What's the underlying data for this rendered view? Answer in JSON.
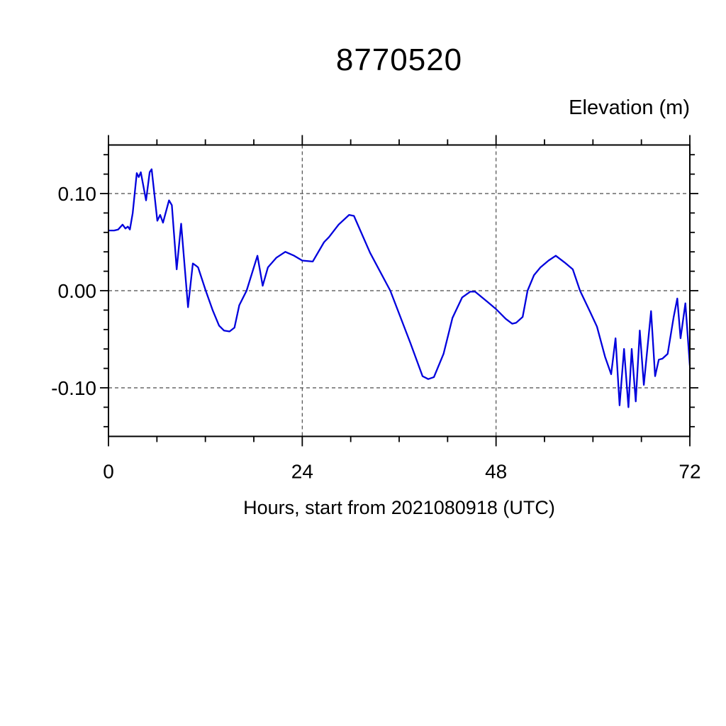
{
  "chart_data": {
    "type": "line",
    "title": "8770520",
    "ylabel": "Elevation (m)",
    "xlabel": "Hours, start from 2021080918 (UTC)",
    "xlim": [
      0,
      72
    ],
    "ylim": [
      -0.15,
      0.15
    ],
    "x_major_ticks": [
      0,
      24,
      48,
      72
    ],
    "x_tick_labels": [
      "0",
      "24",
      "48",
      "72"
    ],
    "x_minor_ticks": [
      6,
      12,
      18,
      30,
      36,
      42,
      54,
      60,
      66
    ],
    "y_major_ticks": [
      0.1,
      0.0,
      -0.1
    ],
    "y_tick_labels": [
      "0.10",
      "0.00",
      "-0.10"
    ],
    "y_minor_ticks": [
      -0.14,
      -0.12,
      -0.08,
      -0.06,
      -0.04,
      -0.02,
      0.02,
      0.04,
      0.06,
      0.08,
      0.12,
      0.14
    ],
    "grid": "dashed-at-major-ticks",
    "legend": "none",
    "line_color": "#0000dd",
    "series": [
      {
        "name": "elevation",
        "points": [
          [
            0.0,
            0.062
          ],
          [
            0.7,
            0.062
          ],
          [
            1.2,
            0.063
          ],
          [
            1.75,
            0.068
          ],
          [
            2.1,
            0.064
          ],
          [
            2.4,
            0.066
          ],
          [
            2.65,
            0.063
          ],
          [
            3.0,
            0.08
          ],
          [
            3.5,
            0.121
          ],
          [
            3.75,
            0.117
          ],
          [
            4.0,
            0.122
          ],
          [
            4.65,
            0.093
          ],
          [
            5.1,
            0.122
          ],
          [
            5.35,
            0.125
          ],
          [
            6.05,
            0.072
          ],
          [
            6.4,
            0.078
          ],
          [
            6.75,
            0.07
          ],
          [
            7.5,
            0.093
          ],
          [
            7.85,
            0.088
          ],
          [
            8.45,
            0.022
          ],
          [
            9.0,
            0.069
          ],
          [
            9.85,
            -0.017
          ],
          [
            10.45,
            0.028
          ],
          [
            10.8,
            0.026
          ],
          [
            11.1,
            0.024
          ],
          [
            12.05,
            0.0
          ],
          [
            12.9,
            -0.02
          ],
          [
            13.7,
            -0.036
          ],
          [
            14.3,
            -0.041
          ],
          [
            15.0,
            -0.042
          ],
          [
            15.6,
            -0.038
          ],
          [
            16.2,
            -0.015
          ],
          [
            17.1,
            0.0
          ],
          [
            18.45,
            0.036
          ],
          [
            19.1,
            0.005
          ],
          [
            19.75,
            0.024
          ],
          [
            20.8,
            0.034
          ],
          [
            21.9,
            0.04
          ],
          [
            23.0,
            0.036
          ],
          [
            24.0,
            0.031
          ],
          [
            25.3,
            0.03
          ],
          [
            26.7,
            0.05
          ],
          [
            27.3,
            0.055
          ],
          [
            28.5,
            0.068
          ],
          [
            29.8,
            0.078
          ],
          [
            30.4,
            0.077
          ],
          [
            32.4,
            0.039
          ],
          [
            34.9,
            0.0
          ],
          [
            37.4,
            -0.054
          ],
          [
            38.9,
            -0.088
          ],
          [
            39.6,
            -0.091
          ],
          [
            40.3,
            -0.089
          ],
          [
            41.5,
            -0.065
          ],
          [
            42.6,
            -0.028
          ],
          [
            43.8,
            -0.007
          ],
          [
            44.8,
            -0.001
          ],
          [
            45.4,
            -0.001
          ],
          [
            47.0,
            -0.012
          ],
          [
            48.0,
            -0.019
          ],
          [
            49.2,
            -0.029
          ],
          [
            50.0,
            -0.034
          ],
          [
            50.5,
            -0.033
          ],
          [
            51.3,
            -0.027
          ],
          [
            51.9,
            0.0
          ],
          [
            52.7,
            0.016
          ],
          [
            53.5,
            0.024
          ],
          [
            54.5,
            0.031
          ],
          [
            55.4,
            0.036
          ],
          [
            56.5,
            0.029
          ],
          [
            57.5,
            0.022
          ],
          [
            58.4,
            0.0
          ],
          [
            59.6,
            -0.021
          ],
          [
            60.5,
            -0.037
          ],
          [
            61.5,
            -0.068
          ],
          [
            62.25,
            -0.086
          ],
          [
            62.8,
            -0.049
          ],
          [
            63.3,
            -0.118
          ],
          [
            63.85,
            -0.06
          ],
          [
            64.4,
            -0.12
          ],
          [
            64.8,
            -0.06
          ],
          [
            65.3,
            -0.114
          ],
          [
            65.8,
            -0.041
          ],
          [
            66.3,
            -0.097
          ],
          [
            67.2,
            -0.021
          ],
          [
            67.7,
            -0.088
          ],
          [
            68.15,
            -0.071
          ],
          [
            68.6,
            -0.07
          ],
          [
            69.25,
            -0.065
          ],
          [
            70.0,
            -0.027
          ],
          [
            70.45,
            -0.008
          ],
          [
            70.85,
            -0.049
          ],
          [
            71.45,
            -0.013
          ],
          [
            72.0,
            -0.077
          ]
        ]
      }
    ]
  }
}
